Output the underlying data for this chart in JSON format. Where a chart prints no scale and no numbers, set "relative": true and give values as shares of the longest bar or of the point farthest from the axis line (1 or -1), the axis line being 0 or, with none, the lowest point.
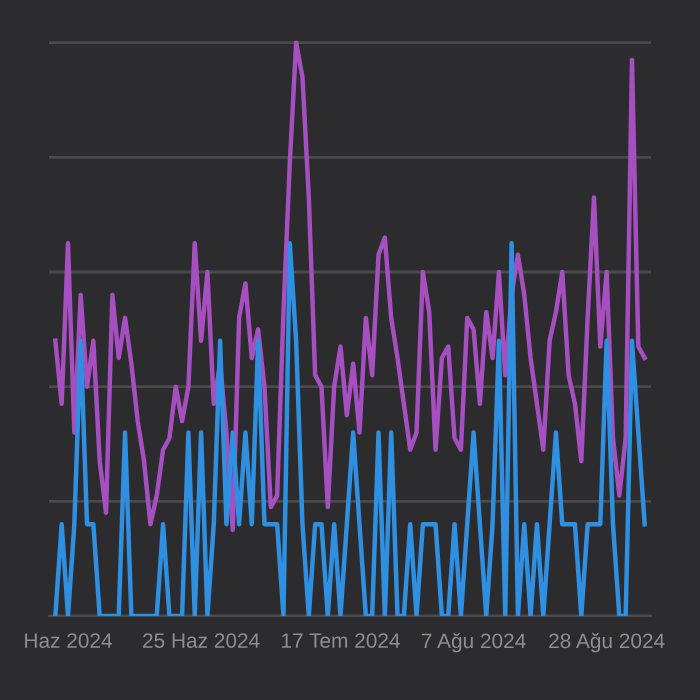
{
  "chart_data": {
    "type": "line",
    "relative": true,
    "grid": "y",
    "tick_labels": "x",
    "marker": "none",
    "line_style": "solid",
    "x": [
      "2024-06-02",
      "2024-06-03",
      "2024-06-04",
      "2024-06-05",
      "2024-06-06",
      "2024-06-07",
      "2024-06-08",
      "2024-06-09",
      "2024-06-10",
      "2024-06-11",
      "2024-06-12",
      "2024-06-13",
      "2024-06-14",
      "2024-06-15",
      "2024-06-16",
      "2024-06-17",
      "2024-06-18",
      "2024-06-19",
      "2024-06-20",
      "2024-06-21",
      "2024-06-22",
      "2024-06-23",
      "2024-06-24",
      "2024-06-25",
      "2024-06-26",
      "2024-06-27",
      "2024-06-28",
      "2024-06-29",
      "2024-06-30",
      "2024-07-01",
      "2024-07-02",
      "2024-07-03",
      "2024-07-04",
      "2024-07-05",
      "2024-07-06",
      "2024-07-07",
      "2024-07-08",
      "2024-07-09",
      "2024-07-10",
      "2024-07-11",
      "2024-07-12",
      "2024-07-13",
      "2024-07-14",
      "2024-07-15",
      "2024-07-16",
      "2024-07-17",
      "2024-07-18",
      "2024-07-19",
      "2024-07-20",
      "2024-07-21",
      "2024-07-22",
      "2024-07-23",
      "2024-07-24",
      "2024-07-25",
      "2024-07-26",
      "2024-07-27",
      "2024-07-28",
      "2024-07-29",
      "2024-07-30",
      "2024-07-31",
      "2024-08-01",
      "2024-08-02",
      "2024-08-03",
      "2024-08-04",
      "2024-08-05",
      "2024-08-06",
      "2024-08-07",
      "2024-08-08",
      "2024-08-09",
      "2024-08-10",
      "2024-08-11",
      "2024-08-12",
      "2024-08-13",
      "2024-08-14",
      "2024-08-15",
      "2024-08-16",
      "2024-08-17",
      "2024-08-18",
      "2024-08-19",
      "2024-08-20",
      "2024-08-21",
      "2024-08-22",
      "2024-08-23",
      "2024-08-24",
      "2024-08-25",
      "2024-08-26",
      "2024-08-27",
      "2024-08-28",
      "2024-08-29",
      "2024-08-30",
      "2024-08-31",
      "2024-09-01",
      "2024-09-02",
      "2024-09-03"
    ],
    "xlim": [
      "2024-06-01",
      "2024-09-04"
    ],
    "xticks": [
      {
        "value": "2024-06-04",
        "label": "Haz 2024"
      },
      {
        "value": "2024-06-25",
        "label": "25 Haz 2024"
      },
      {
        "value": "2024-07-17",
        "label": "17 Tem 2024"
      },
      {
        "value": "2024-08-07",
        "label": "7 Ağu 2024"
      },
      {
        "value": "2024-08-28",
        "label": "28 Ağu 2024"
      }
    ],
    "series": [
      {
        "color": "#a64fc0",
        "values": [
          0.48,
          0.37,
          0.65,
          0.32,
          0.56,
          0.4,
          0.48,
          0.27,
          0.18,
          0.56,
          0.45,
          0.52,
          0.44,
          0.34,
          0.27,
          0.16,
          0.21,
          0.29,
          0.31,
          0.4,
          0.34,
          0.4,
          0.65,
          0.48,
          0.6,
          0.37,
          0.44,
          0.32,
          0.15,
          0.52,
          0.58,
          0.45,
          0.5,
          0.4,
          0.19,
          0.21,
          0.53,
          0.79,
          1,
          0.94,
          0.73,
          0.42,
          0.4,
          0.19,
          0.4,
          0.47,
          0.35,
          0.44,
          0.32,
          0.52,
          0.42,
          0.63,
          0.66,
          0.52,
          0.45,
          0.37,
          0.29,
          0.32,
          0.6,
          0.53,
          0.29,
          0.45,
          0.47,
          0.31,
          0.29,
          0.52,
          0.5,
          0.37,
          0.53,
          0.45,
          0.6,
          0.42,
          0.56,
          0.63,
          0.56,
          0.45,
          0.37,
          0.29,
          0.48,
          0.53,
          0.6,
          0.42,
          0.37,
          0.27,
          0.52,
          0.73,
          0.47,
          0.6,
          0.31,
          0.21,
          0.31,
          0.97,
          0.47,
          0.45
        ]
      },
      {
        "color": "#2f8fe0",
        "values": [
          0,
          0.16,
          0,
          0.16,
          0.48,
          0.16,
          0.16,
          0,
          0,
          0,
          0,
          0.32,
          0,
          0,
          0,
          0,
          0,
          0.16,
          0,
          0,
          0,
          0.32,
          0,
          0.32,
          0,
          0.16,
          0.48,
          0.16,
          0.32,
          0.16,
          0.32,
          0.16,
          0.48,
          0.16,
          0.16,
          0.16,
          0,
          0.65,
          0.48,
          0.16,
          0,
          0.16,
          0.16,
          0,
          0.16,
          0,
          0.16,
          0.32,
          0.16,
          0,
          0,
          0.32,
          0,
          0.32,
          0,
          0,
          0.16,
          0,
          0.16,
          0.16,
          0.16,
          0,
          0,
          0.16,
          0,
          0.16,
          0.32,
          0.16,
          0,
          0.16,
          0.48,
          0,
          0.65,
          0,
          0.16,
          0,
          0.16,
          0,
          0.16,
          0.32,
          0.16,
          0.16,
          0.16,
          0,
          0.16,
          0.16,
          0.16,
          0.48,
          0.16,
          0,
          0,
          0.48,
          0.32,
          0.16
        ]
      }
    ]
  }
}
